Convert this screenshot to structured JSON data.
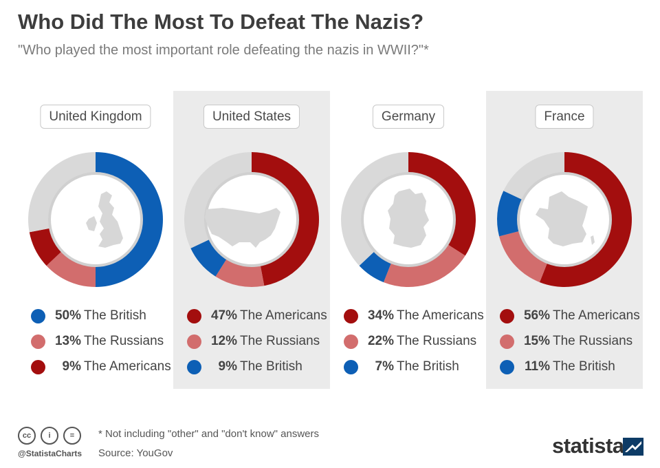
{
  "title": "Who Did The Most To Defeat The Nazis?",
  "subtitle": "\"Who played the most important role defeating the nazis in WWII?\"*",
  "colors": {
    "british": "#0d5fb5",
    "russians": "#d26d6d",
    "americans": "#a30e0e",
    "remainder": "#d9d9d9",
    "panel_shade": "#ebebeb"
  },
  "chart_data": [
    {
      "type": "pie",
      "country": "United Kingdom",
      "map_icon": "uk-map-icon",
      "slices": [
        {
          "label": "The British",
          "value": 50,
          "display": "50%",
          "color": "#0d5fb5"
        },
        {
          "label": "The Russians",
          "value": 13,
          "display": "13%",
          "color": "#d26d6d"
        },
        {
          "label": "The Americans",
          "value": 9,
          "display": "9%",
          "color": "#a30e0e"
        }
      ]
    },
    {
      "type": "pie",
      "country": "United States",
      "map_icon": "us-map-icon",
      "slices": [
        {
          "label": "The Americans",
          "value": 47,
          "display": "47%",
          "color": "#a30e0e"
        },
        {
          "label": "The Russians",
          "value": 12,
          "display": "12%",
          "color": "#d26d6d"
        },
        {
          "label": "The British",
          "value": 9,
          "display": "9%",
          "color": "#0d5fb5"
        }
      ]
    },
    {
      "type": "pie",
      "country": "Germany",
      "map_icon": "germany-map-icon",
      "slices": [
        {
          "label": "The Americans",
          "value": 34,
          "display": "34%",
          "color": "#a30e0e"
        },
        {
          "label": "The Russians",
          "value": 22,
          "display": "22%",
          "color": "#d26d6d"
        },
        {
          "label": "The British",
          "value": 7,
          "display": "7%",
          "color": "#0d5fb5"
        }
      ]
    },
    {
      "type": "pie",
      "country": "France",
      "map_icon": "france-map-icon",
      "slices": [
        {
          "label": "The Americans",
          "value": 56,
          "display": "56%",
          "color": "#a30e0e"
        },
        {
          "label": "The Russians",
          "value": 15,
          "display": "15%",
          "color": "#d26d6d"
        },
        {
          "label": "The British",
          "value": 11,
          "display": "11%",
          "color": "#0d5fb5"
        }
      ]
    }
  ],
  "footer": {
    "handle": "@StatistaCharts",
    "note": "* Not including \"other\" and \"don't know\" answers",
    "source": "Source: YouGov",
    "logo": "statista",
    "license_icons": [
      "cc-icon",
      "by-icon",
      "nd-icon"
    ]
  }
}
